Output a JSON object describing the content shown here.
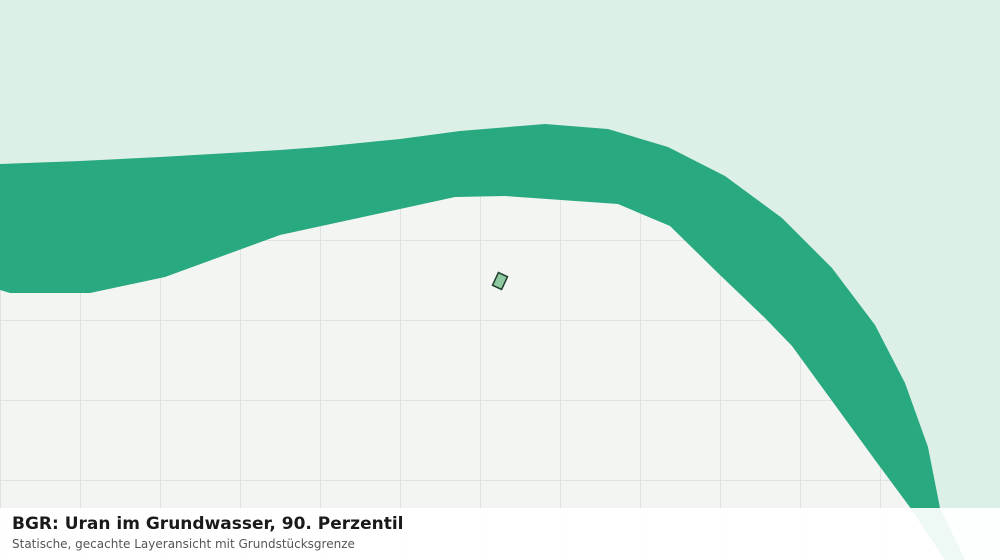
{
  "header": {
    "title": "BGR: Uran im Grundwasser, 90. Perzentil",
    "subtitle": "Statische, gecachte Layeransicht mit Grundstücksgrenze"
  }
}
